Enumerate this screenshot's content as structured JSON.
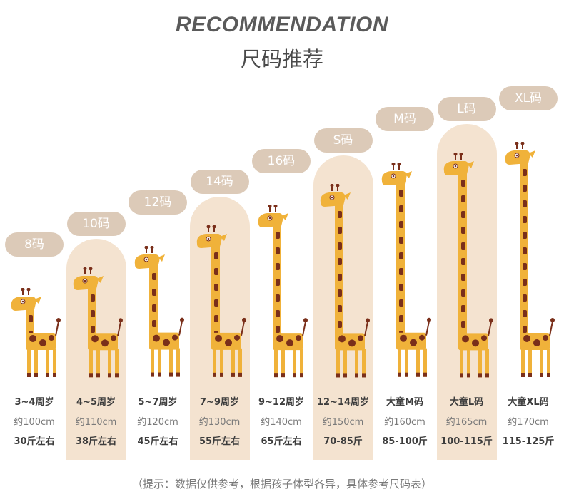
{
  "header": {
    "title": "RECOMMENDATION",
    "subtitle": "尺码推荐"
  },
  "colors": {
    "badge": "#dccab8",
    "highlight": "#f4e3d0",
    "giraffe_body": "#f0b23a",
    "giraffe_spot": "#7a2f1a"
  },
  "sizes": [
    {
      "label": "8码",
      "age": "3~4周岁",
      "height": "约100cm",
      "weight": "30斤左右",
      "highlighted": false,
      "height_cm": 100
    },
    {
      "label": "10码",
      "age": "4~5周岁",
      "height": "约110cm",
      "weight": "38斤左右",
      "highlighted": true,
      "height_cm": 110
    },
    {
      "label": "12码",
      "age": "5~7周岁",
      "height": "约120cm",
      "weight": "45斤左右",
      "highlighted": false,
      "height_cm": 120
    },
    {
      "label": "14码",
      "age": "7~9周岁",
      "height": "约130cm",
      "weight": "55斤左右",
      "highlighted": true,
      "height_cm": 130
    },
    {
      "label": "16码",
      "age": "9~12周岁",
      "height": "约140cm",
      "weight": "65斤左右",
      "highlighted": false,
      "height_cm": 140
    },
    {
      "label": "S码",
      "age": "12~14周岁",
      "height": "约150cm",
      "weight": "70-85斤",
      "highlighted": true,
      "height_cm": 150
    },
    {
      "label": "M码",
      "age": "大童M码",
      "height": "约160cm",
      "weight": "85-100斤",
      "highlighted": false,
      "height_cm": 160
    },
    {
      "label": "L码",
      "age": "大童L码",
      "height": "约165cm",
      "weight": "100-115斤",
      "highlighted": true,
      "height_cm": 165
    },
    {
      "label": "XL码",
      "age": "大童XL码",
      "height": "约170cm",
      "weight": "115-125斤",
      "highlighted": false,
      "height_cm": 170
    }
  ],
  "footer": {
    "note": "（提示：数据仅供参考，根据孩子体型各异，具体参考尺码表）"
  }
}
